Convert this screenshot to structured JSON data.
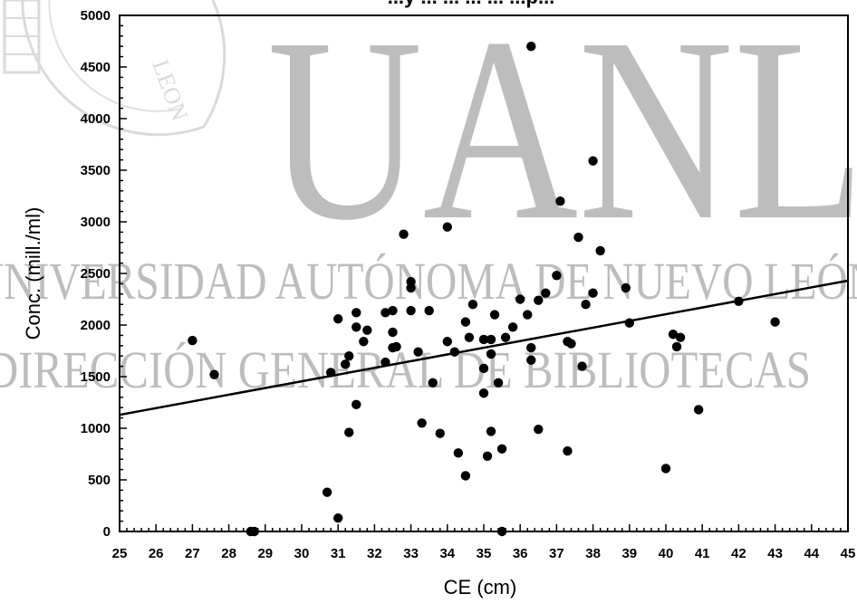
{
  "watermark": {
    "big": "UANL",
    "line1": "UNIVERSIDAD AUTÓNOMA DE NUEVO LEÓN",
    "line2": "DIRECCIÓN GENERAL DE BIBLIOTECAS",
    "seal_text": "LEON"
  },
  "chart_data": {
    "type": "scatter",
    "title": "...y ... ... ... ... ...p...",
    "xlabel": "CE (cm)",
    "ylabel": "Conc. (mill./ml)",
    "xlim": [
      25,
      45
    ],
    "ylim": [
      0,
      5000
    ],
    "xticks": [
      25,
      26,
      27,
      28,
      29,
      30,
      31,
      32,
      33,
      34,
      35,
      36,
      37,
      38,
      39,
      40,
      41,
      42,
      43,
      44,
      45
    ],
    "yticks": [
      0,
      500,
      1000,
      1500,
      2000,
      2500,
      3000,
      3500,
      4000,
      4500,
      5000
    ],
    "grid": false,
    "legend": "none",
    "points": [
      [
        27.0,
        1850
      ],
      [
        27.6,
        1520
      ],
      [
        28.6,
        0
      ],
      [
        28.7,
        0
      ],
      [
        30.7,
        380
      ],
      [
        30.8,
        1540
      ],
      [
        31.0,
        2060
      ],
      [
        31.0,
        130
      ],
      [
        31.2,
        1620
      ],
      [
        31.3,
        1700
      ],
      [
        31.3,
        960
      ],
      [
        31.5,
        2120
      ],
      [
        31.5,
        1980
      ],
      [
        31.5,
        1230
      ],
      [
        31.7,
        1840
      ],
      [
        31.8,
        1950
      ],
      [
        32.3,
        2120
      ],
      [
        32.3,
        1640
      ],
      [
        32.5,
        2140
      ],
      [
        32.5,
        1930
      ],
      [
        32.5,
        1780
      ],
      [
        32.6,
        1790
      ],
      [
        32.8,
        2880
      ],
      [
        33.0,
        2420
      ],
      [
        33.0,
        2360
      ],
      [
        33.0,
        2140
      ],
      [
        33.2,
        1740
      ],
      [
        33.3,
        1050
      ],
      [
        33.5,
        2140
      ],
      [
        33.6,
        1440
      ],
      [
        33.8,
        950
      ],
      [
        34.0,
        2950
      ],
      [
        34.0,
        1840
      ],
      [
        34.2,
        1740
      ],
      [
        34.3,
        760
      ],
      [
        34.5,
        2030
      ],
      [
        34.5,
        540
      ],
      [
        34.6,
        1880
      ],
      [
        34.7,
        2200
      ],
      [
        35.0,
        1860
      ],
      [
        35.0,
        1580
      ],
      [
        35.0,
        1340
      ],
      [
        35.1,
        730
      ],
      [
        35.2,
        1860
      ],
      [
        35.2,
        1720
      ],
      [
        35.2,
        970
      ],
      [
        35.3,
        2100
      ],
      [
        35.4,
        1440
      ],
      [
        35.5,
        800
      ],
      [
        35.5,
        0
      ],
      [
        35.6,
        1880
      ],
      [
        35.8,
        1980
      ],
      [
        36.0,
        2250
      ],
      [
        36.2,
        2100
      ],
      [
        36.3,
        4700
      ],
      [
        36.3,
        1780
      ],
      [
        36.3,
        1660
      ],
      [
        36.5,
        2240
      ],
      [
        36.5,
        990
      ],
      [
        36.7,
        2310
      ],
      [
        37.0,
        2480
      ],
      [
        37.1,
        3200
      ],
      [
        37.3,
        1840
      ],
      [
        37.3,
        780
      ],
      [
        37.4,
        1820
      ],
      [
        37.6,
        2850
      ],
      [
        37.7,
        1600
      ],
      [
        37.8,
        2200
      ],
      [
        38.0,
        3590
      ],
      [
        38.0,
        2310
      ],
      [
        38.2,
        2720
      ],
      [
        38.9,
        2360
      ],
      [
        39.0,
        2020
      ],
      [
        40.0,
        610
      ],
      [
        40.2,
        1910
      ],
      [
        40.3,
        1790
      ],
      [
        40.4,
        1880
      ],
      [
        40.9,
        1180
      ],
      [
        42.0,
        2230
      ],
      [
        43.0,
        2030
      ]
    ],
    "trendline": {
      "x": [
        25,
        45
      ],
      "y": [
        1130,
        2430
      ]
    }
  }
}
